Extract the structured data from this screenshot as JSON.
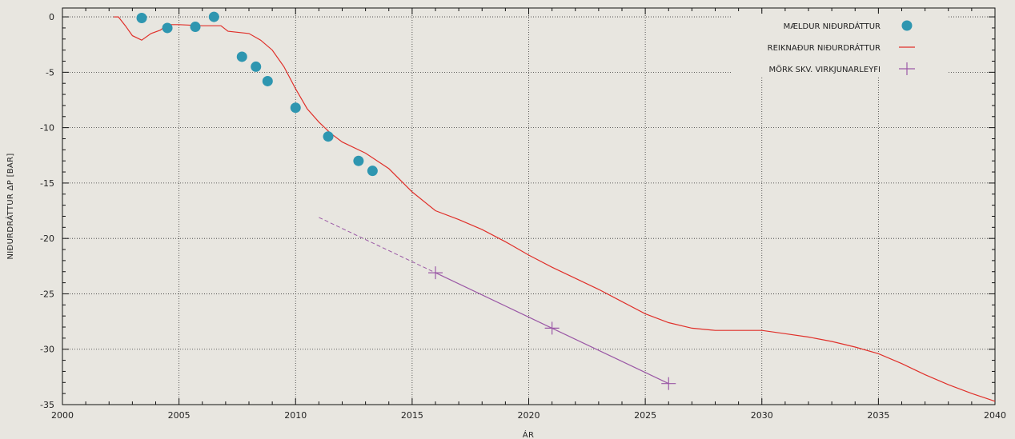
{
  "chart_data": {
    "type": "line",
    "xlabel": "ÁR",
    "ylabel": "NIÐURDRÁTTUR ΔP [BAR]",
    "xlim": [
      2000,
      2040
    ],
    "ylim": [
      -35,
      1
    ],
    "xticks": [
      2000,
      2005,
      2010,
      2015,
      2020,
      2025,
      2030,
      2035,
      2040
    ],
    "yticks": [
      0,
      -5,
      -10,
      -15,
      -20,
      -25,
      -30,
      -35
    ],
    "grid": true,
    "legend_position": "top-right",
    "series": [
      {
        "name": "MÆLDUR NIÐURDÁTTUR",
        "kind": "scatter",
        "color": "#2e96b0",
        "x": [
          2003.4,
          2004.5,
          2005.7,
          2006.5,
          2007.7,
          2008.3,
          2008.8,
          2010.0,
          2011.4,
          2012.7,
          2013.3
        ],
        "y": [
          -0.1,
          -1.0,
          -0.9,
          0.0,
          -3.6,
          -4.5,
          -5.8,
          -8.2,
          -10.8,
          -13.0,
          -13.9
        ]
      },
      {
        "name": "REIKNAÐUR NIÐURDRÁTTUR",
        "kind": "line",
        "color": "#e0302a",
        "x": [
          2002.2,
          2002.4,
          2002.7,
          2003.0,
          2003.4,
          2003.8,
          2004.2,
          2004.5,
          2005.0,
          2006.0,
          2006.8,
          2007.1,
          2008.0,
          2008.5,
          2009.0,
          2009.5,
          2010.0,
          2010.5,
          2011.0,
          2011.5,
          2012.0,
          2013.0,
          2014.0,
          2015.0,
          2016.0,
          2017.0,
          2018.0,
          2019.0,
          2020.0,
          2021.0,
          2022.0,
          2023.0,
          2024.0,
          2025.0,
          2026.0,
          2027.0,
          2028.0,
          2029.0,
          2030.0,
          2031.0,
          2032.0,
          2033.0,
          2034.0,
          2035.0,
          2036.0,
          2037.0,
          2038.0,
          2039.0,
          2040.0
        ],
        "y": [
          0.0,
          0.0,
          -0.8,
          -1.7,
          -2.1,
          -1.5,
          -1.2,
          -0.7,
          -0.7,
          -0.8,
          -0.8,
          -1.3,
          -1.5,
          -2.1,
          -3.0,
          -4.5,
          -6.5,
          -8.3,
          -9.5,
          -10.5,
          -11.3,
          -12.3,
          -13.7,
          -15.8,
          -17.5,
          -18.3,
          -19.2,
          -20.3,
          -21.5,
          -22.6,
          -23.6,
          -24.6,
          -25.7,
          -26.8,
          -27.6,
          -28.1,
          -28.3,
          -28.3,
          -28.3,
          -28.6,
          -28.9,
          -29.3,
          -29.8,
          -30.4,
          -31.3,
          -32.3,
          -33.2,
          -34.0,
          -34.7
        ]
      },
      {
        "name": "MÖRK SKV. VIRKJUNARLEYFI",
        "kind": "line-markers",
        "color": "#9b59a6",
        "x": [
          2016,
          2021,
          2026
        ],
        "y": [
          -23.1,
          -28.1,
          -33.1
        ],
        "extrapolated_x": [
          2011,
          2016
        ],
        "extrapolated_y": [
          -18.1,
          -23.1
        ]
      }
    ]
  }
}
